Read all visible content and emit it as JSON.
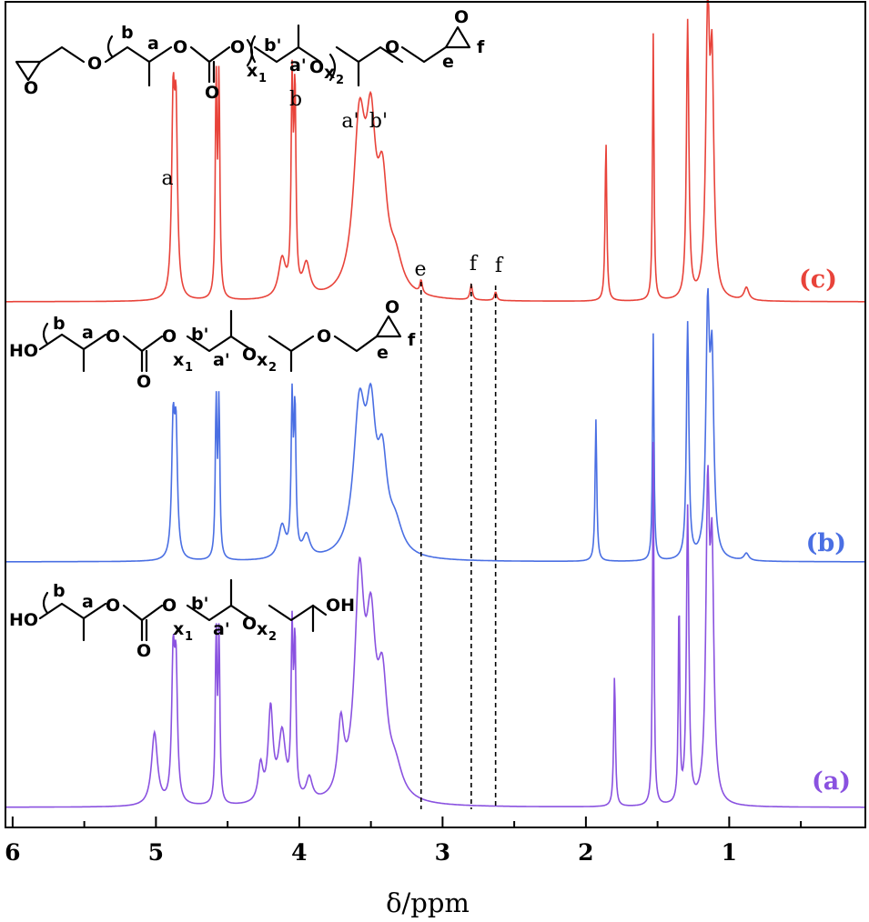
{
  "chart_data": {
    "type": "line",
    "title": "",
    "xlabel": "δ/ppm",
    "ylabel": "",
    "xlim": [
      6.05,
      0.05
    ],
    "x_reversed": true,
    "x_ticks": [
      6,
      5,
      4,
      3,
      2,
      1
    ],
    "x_tick_labels": [
      "6",
      "5",
      "4",
      "3",
      "2",
      "1"
    ],
    "grid": false,
    "legend": "none",
    "series": [
      {
        "name": "(c)",
        "color": "#e8433a",
        "peaks": [
          {
            "ppm": 4.88,
            "height": 0.86,
            "width": 0.012
          },
          {
            "ppm": 4.86,
            "height": 0.8,
            "width": 0.012
          },
          {
            "ppm": 4.58,
            "height": 1.0,
            "width": 0.007
          },
          {
            "ppm": 4.56,
            "height": 1.0,
            "width": 0.007
          },
          {
            "ppm": 4.05,
            "height": 0.95,
            "width": 0.008
          },
          {
            "ppm": 4.03,
            "height": 0.92,
            "width": 0.008
          },
          {
            "ppm": 4.12,
            "height": 0.18,
            "width": 0.03
          },
          {
            "ppm": 3.95,
            "height": 0.15,
            "width": 0.03
          },
          {
            "ppm": 3.58,
            "height": 0.78,
            "width": 0.05
          },
          {
            "ppm": 3.5,
            "height": 0.65,
            "width": 0.04
          },
          {
            "ppm": 3.42,
            "height": 0.45,
            "width": 0.04
          },
          {
            "ppm": 3.33,
            "height": 0.15,
            "width": 0.06
          },
          {
            "ppm": 3.15,
            "height": 0.06,
            "width": 0.01
          },
          {
            "ppm": 2.8,
            "height": 0.07,
            "width": 0.01
          },
          {
            "ppm": 2.63,
            "height": 0.04,
            "width": 0.01
          },
          {
            "ppm": 1.86,
            "height": 0.75,
            "width": 0.007
          },
          {
            "ppm": 1.53,
            "height": 1.25,
            "width": 0.006
          },
          {
            "ppm": 1.29,
            "height": 1.3,
            "width": 0.01
          },
          {
            "ppm": 1.15,
            "height": 1.3,
            "width": 0.015
          },
          {
            "ppm": 1.12,
            "height": 1.0,
            "width": 0.015
          },
          {
            "ppm": 0.88,
            "height": 0.06,
            "width": 0.02
          }
        ]
      },
      {
        "name": "(b)",
        "color": "#4a6fe3",
        "peaks": [
          {
            "ppm": 4.88,
            "height": 0.7,
            "width": 0.012
          },
          {
            "ppm": 4.86,
            "height": 0.66,
            "width": 0.012
          },
          {
            "ppm": 4.58,
            "height": 0.85,
            "width": 0.007
          },
          {
            "ppm": 4.56,
            "height": 0.85,
            "width": 0.007
          },
          {
            "ppm": 4.05,
            "height": 0.82,
            "width": 0.008
          },
          {
            "ppm": 4.03,
            "height": 0.78,
            "width": 0.008
          },
          {
            "ppm": 4.12,
            "height": 0.18,
            "width": 0.03
          },
          {
            "ppm": 3.95,
            "height": 0.12,
            "width": 0.03
          },
          {
            "ppm": 3.58,
            "height": 0.78,
            "width": 0.05
          },
          {
            "ppm": 3.5,
            "height": 0.65,
            "width": 0.04
          },
          {
            "ppm": 3.42,
            "height": 0.45,
            "width": 0.04
          },
          {
            "ppm": 3.33,
            "height": 0.15,
            "width": 0.06
          },
          {
            "ppm": 1.93,
            "height": 0.78,
            "width": 0.007
          },
          {
            "ppm": 1.53,
            "height": 1.25,
            "width": 0.006
          },
          {
            "ppm": 1.29,
            "height": 1.3,
            "width": 0.01
          },
          {
            "ppm": 1.15,
            "height": 1.3,
            "width": 0.015
          },
          {
            "ppm": 1.12,
            "height": 1.0,
            "width": 0.015
          },
          {
            "ppm": 0.88,
            "height": 0.04,
            "width": 0.02
          }
        ]
      },
      {
        "name": "(a)",
        "color": "#8a52e0",
        "peaks": [
          {
            "ppm": 5.01,
            "height": 0.32,
            "width": 0.025
          },
          {
            "ppm": 4.88,
            "height": 0.6,
            "width": 0.012
          },
          {
            "ppm": 4.86,
            "height": 0.56,
            "width": 0.012
          },
          {
            "ppm": 4.58,
            "height": 0.73,
            "width": 0.007
          },
          {
            "ppm": 4.56,
            "height": 0.73,
            "width": 0.007
          },
          {
            "ppm": 4.27,
            "height": 0.16,
            "width": 0.02
          },
          {
            "ppm": 4.2,
            "height": 0.4,
            "width": 0.02
          },
          {
            "ppm": 4.12,
            "height": 0.3,
            "width": 0.03
          },
          {
            "ppm": 4.05,
            "height": 0.7,
            "width": 0.008
          },
          {
            "ppm": 4.03,
            "height": 0.66,
            "width": 0.008
          },
          {
            "ppm": 3.93,
            "height": 0.1,
            "width": 0.025
          },
          {
            "ppm": 3.71,
            "height": 0.3,
            "width": 0.025
          },
          {
            "ppm": 3.58,
            "height": 0.92,
            "width": 0.04
          },
          {
            "ppm": 3.5,
            "height": 0.65,
            "width": 0.04
          },
          {
            "ppm": 3.42,
            "height": 0.45,
            "width": 0.04
          },
          {
            "ppm": 3.33,
            "height": 0.12,
            "width": 0.06
          },
          {
            "ppm": 1.8,
            "height": 0.58,
            "width": 0.007
          },
          {
            "ppm": 1.53,
            "height": 1.6,
            "width": 0.006
          },
          {
            "ppm": 1.35,
            "height": 0.9,
            "width": 0.006
          },
          {
            "ppm": 1.29,
            "height": 1.3,
            "width": 0.01
          },
          {
            "ppm": 1.15,
            "height": 1.3,
            "width": 0.015
          },
          {
            "ppm": 1.12,
            "height": 1.0,
            "width": 0.015
          }
        ]
      }
    ],
    "annotations": [
      {
        "text": "a",
        "ppm": 4.88
      },
      {
        "text": "a'",
        "ppm": 3.6
      },
      {
        "text": "b'",
        "ppm": 3.48
      },
      {
        "text": "e",
        "ppm": 3.15
      },
      {
        "text": "f",
        "ppm": 2.8
      },
      {
        "text": "f",
        "ppm": 2.63
      }
    ],
    "dashed_lines_ppm": [
      3.15,
      2.8,
      2.63
    ]
  },
  "structures": {
    "c": {
      "b": "b",
      "a": "a",
      "o_ester": "O",
      "o_carbonyl": "O",
      "o_link": "O",
      "x1": "x",
      "x1_sub": "1",
      "b_prime": "b'",
      "a_prime": "a'",
      "o_ether": "O",
      "x2": "x",
      "x2_sub": "2",
      "b_below": "b",
      "o_end": "O",
      "o_epox": "O",
      "e": "e",
      "f": "f",
      "o_start": "O",
      "o_epox_start": "O"
    },
    "b": {
      "ho": "HO",
      "b": "b",
      "a": "a",
      "o_ester": "O",
      "o_carbonyl": "O",
      "o_link": "O",
      "x1": "x",
      "x1_sub": "1",
      "b_prime": "b'",
      "a_prime": "a'",
      "o_ether": "O",
      "x2": "x",
      "x2_sub": "2",
      "o_end": "O",
      "o_epox": "O",
      "e": "e",
      "f": "f"
    },
    "a": {
      "ho": "HO",
      "b": "b",
      "a": "a",
      "o_ester": "O",
      "o_carbonyl": "O",
      "o_link": "O",
      "x1": "x",
      "x1_sub": "1",
      "b_prime": "b'",
      "a_prime": "a'",
      "o_ether": "O",
      "x2": "x",
      "x2_sub": "2",
      "oh": "OH"
    }
  }
}
